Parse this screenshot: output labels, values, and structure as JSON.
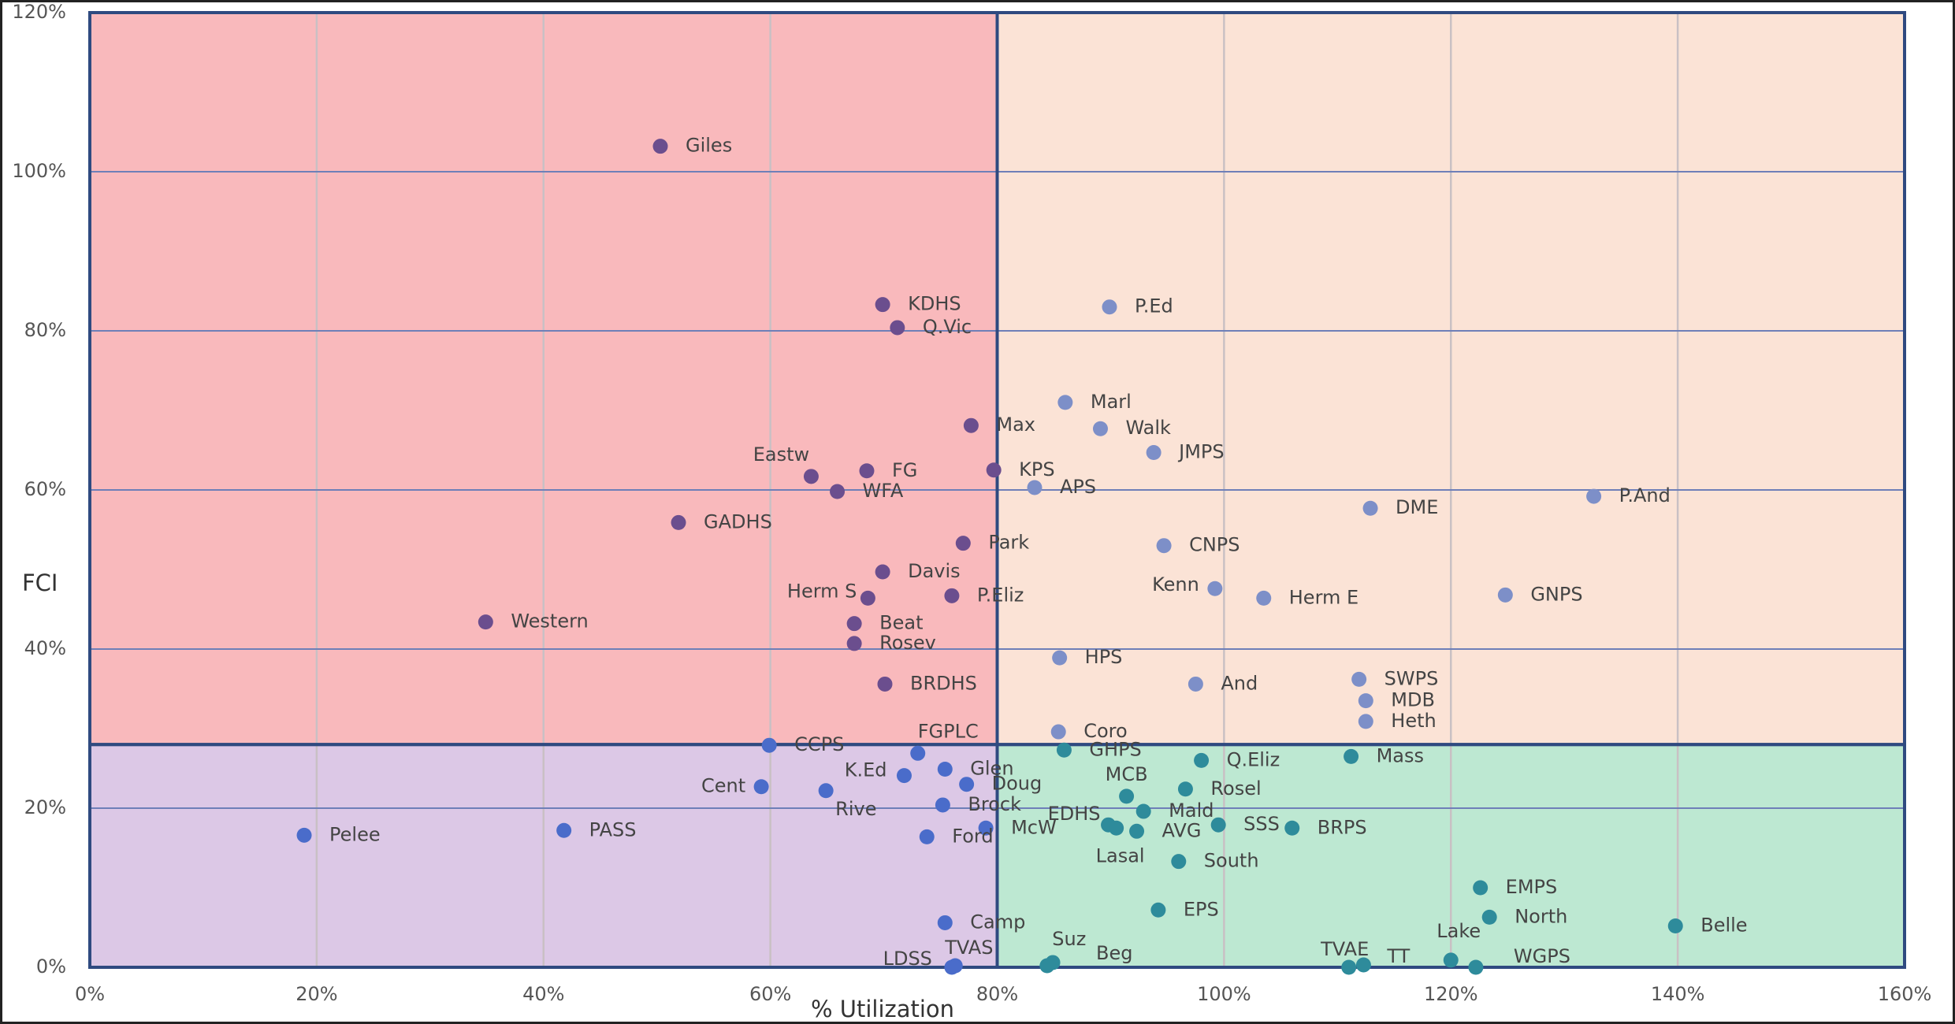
{
  "chart_data": {
    "type": "scatter",
    "xlabel": "% Utilization",
    "ylabel": "FCI",
    "xlim": [
      0,
      160
    ],
    "ylim": [
      0,
      120
    ],
    "xticks": [
      {
        "value": 0,
        "label": "0%"
      },
      {
        "value": 20,
        "label": "20%"
      },
      {
        "value": 40,
        "label": "40%"
      },
      {
        "value": 60,
        "label": "60%"
      },
      {
        "value": 80,
        "label": "80%"
      },
      {
        "value": 100,
        "label": "100%"
      },
      {
        "value": 120,
        "label": "120%"
      },
      {
        "value": 140,
        "label": "140%"
      },
      {
        "value": 160,
        "label": "160%"
      }
    ],
    "yticks": [
      {
        "value": 0,
        "label": "0%"
      },
      {
        "value": 20,
        "label": "20%"
      },
      {
        "value": 40,
        "label": "40%"
      },
      {
        "value": 60,
        "label": "60%"
      },
      {
        "value": 80,
        "label": "80%"
      },
      {
        "value": 100,
        "label": "100%"
      },
      {
        "value": 120,
        "label": "120%"
      }
    ],
    "grid": true,
    "quadrant_split": [
      80,
      28
    ],
    "quadrant_colors": {
      "top_left": "#f9b9bc",
      "top_right": "#fbe3d6",
      "bottom_left": "#dcc8e6",
      "bottom_right": "#bde8d2"
    },
    "point_colors": {
      "top_left": "#6b4e8e",
      "top_right": "#7d8fc8",
      "bottom_left": "#4a6cca",
      "bottom_right": "#2e8b9b"
    },
    "labels": [
      "Giles",
      "KDHS",
      "Q.Vic",
      "P.Ed",
      "Marl",
      "Walk",
      "Max",
      "JMPS",
      "Eastw",
      "FG",
      "KPS",
      "WFA",
      "APS",
      "DME",
      "P.And",
      "GADHS",
      "Park",
      "CNPS",
      "Davis",
      "Kenn",
      "Herm S",
      "P.Eliz",
      "Herm E",
      "GNPS",
      "Western",
      "Beat",
      "Rosev",
      "HPS",
      "BRDHS",
      "And",
      "SWPS",
      "MDB",
      "Heth",
      "FGPLC",
      "Coro",
      "CCPS",
      "Glen",
      "GHPS",
      "Q.Eliz",
      "Mass",
      "K.Ed",
      "Cent",
      "Doug",
      "MCB",
      "Rosel",
      "Rive",
      "Brock",
      "Mald",
      "EDHS",
      "Lasal",
      "Pelee",
      "PASS",
      "McW",
      "AVG",
      "SSS",
      "BRPS",
      "Ford",
      "South",
      "EMPS",
      "EPS",
      "North",
      "Belle",
      "Camp",
      "Suz",
      "Beg",
      "Lake",
      "TVAE",
      "TT",
      "WGPS",
      "LDSS",
      "TVAS"
    ],
    "x": [
      50.3,
      69.9,
      71.2,
      89.9,
      86.0,
      89.1,
      77.7,
      93.8,
      63.6,
      68.5,
      79.7,
      65.9,
      83.3,
      112.9,
      132.6,
      51.9,
      77.0,
      94.7,
      69.9,
      99.2,
      68.6,
      76.0,
      103.5,
      124.8,
      34.9,
      67.4,
      67.4,
      85.5,
      70.1,
      97.5,
      111.9,
      112.5,
      112.5,
      73.0,
      85.4,
      59.9,
      75.4,
      85.9,
      98.0,
      111.2,
      71.8,
      59.2,
      77.3,
      91.4,
      96.6,
      64.9,
      75.2,
      92.9,
      89.8,
      90.5,
      18.9,
      41.8,
      79.0,
      92.3,
      99.5,
      106.0,
      73.8,
      96.0,
      122.6,
      94.2,
      123.4,
      139.8,
      75.4,
      84.4,
      84.9,
      120.0,
      111.0,
      112.3,
      122.2,
      76.0,
      76.3
    ],
    "values": [
      103.2,
      83.3,
      80.4,
      83.0,
      71.0,
      67.7,
      68.1,
      64.7,
      61.7,
      62.4,
      62.5,
      59.8,
      60.3,
      57.7,
      59.2,
      55.9,
      53.3,
      53.0,
      49.7,
      47.6,
      46.4,
      46.7,
      46.4,
      46.8,
      43.4,
      43.2,
      40.7,
      38.9,
      35.6,
      35.6,
      36.2,
      33.5,
      30.9,
      26.9,
      29.6,
      27.9,
      24.9,
      27.3,
      26.0,
      26.5,
      24.1,
      22.7,
      23.0,
      21.5,
      22.4,
      22.2,
      20.4,
      19.6,
      17.9,
      17.5,
      16.6,
      17.2,
      17.5,
      17.1,
      17.9,
      17.5,
      16.4,
      13.3,
      10.0,
      7.2,
      6.3,
      5.2,
      5.6,
      0.2,
      0.6,
      0.9,
      0.0,
      0.3,
      0.0,
      0.0,
      0.2
    ]
  }
}
